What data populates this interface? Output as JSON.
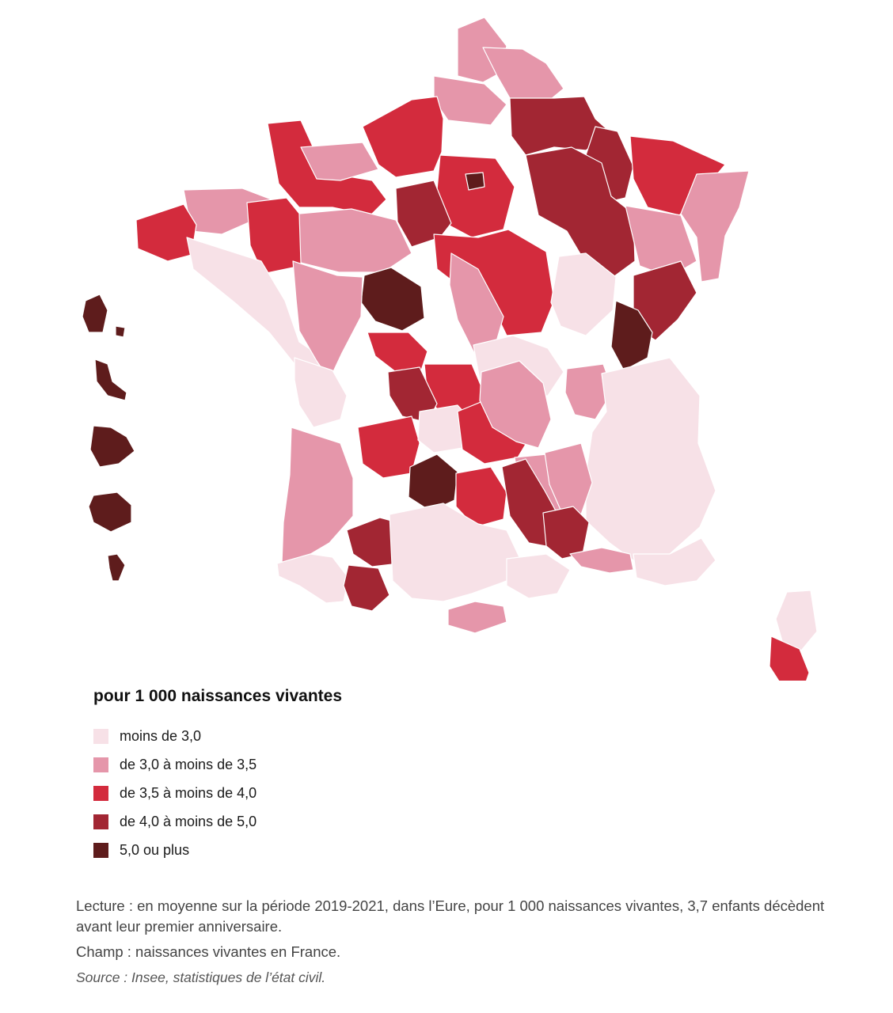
{
  "legend": {
    "title": "pour 1 000 naissances vivantes",
    "classes": [
      {
        "label": "moins de 3,0",
        "color": "#f7e1e7"
      },
      {
        "label": "de 3,0 à moins de 3,5",
        "color": "#e596aa"
      },
      {
        "label": "de 3,5 à moins de 4,0",
        "color": "#d32b3d"
      },
      {
        "label": "de 4,0 à moins de 5,0",
        "color": "#a22633"
      },
      {
        "label": "5,0 ou plus",
        "color": "#5e1c1c"
      }
    ]
  },
  "notes": {
    "lecture": "Lecture : en moyenne sur la période 2019-2021, dans l’Eure, pour 1 000 naissances vivantes, 3,7 enfants décèdent avant leur premier anniversaire.",
    "champ": "Champ : naissances vivantes en France.",
    "source": "Source : Insee, statistiques de l’état civil."
  },
  "map": {
    "regions": [
      {
        "name": "nord-pas-de-calais",
        "class": 1
      },
      {
        "name": "somme-oise",
        "class": 1
      },
      {
        "name": "aisne",
        "class": 1
      },
      {
        "name": "ardennes-marne",
        "class": 3
      },
      {
        "name": "meuse",
        "class": 3
      },
      {
        "name": "moselle",
        "class": 2
      },
      {
        "name": "bas-rhin-haut-rhin",
        "class": 1
      },
      {
        "name": "seine-maritime-eure",
        "class": 2
      },
      {
        "name": "ile-de-france",
        "class": 2
      },
      {
        "name": "paris",
        "class": 4
      },
      {
        "name": "calvados-orne",
        "class": 2
      },
      {
        "name": "manche",
        "class": 1
      },
      {
        "name": "bretagne-cotes",
        "class": 1
      },
      {
        "name": "finistere",
        "class": 2
      },
      {
        "name": "ille-et-vilaine",
        "class": 2
      },
      {
        "name": "loire-atlantique-sud",
        "class": 0
      },
      {
        "name": "sarthe-mayenne",
        "class": 1
      },
      {
        "name": "loiret-eure-et-loir",
        "class": 3
      },
      {
        "name": "aube-haute-marne",
        "class": 3
      },
      {
        "name": "vosges",
        "class": 1
      },
      {
        "name": "indre-et-loire",
        "class": 2
      },
      {
        "name": "cher",
        "class": 4
      },
      {
        "name": "nievre-yonne",
        "class": 1
      },
      {
        "name": "cote-dor",
        "class": 1
      },
      {
        "name": "haute-saone",
        "class": 0
      },
      {
        "name": "doubs",
        "class": 3
      },
      {
        "name": "jura",
        "class": 4
      },
      {
        "name": "vendee-charente",
        "class": 0
      },
      {
        "name": "vienne",
        "class": 2
      },
      {
        "name": "allier",
        "class": 2
      },
      {
        "name": "creuse-haute-vienne",
        "class": 3
      },
      {
        "name": "saone-et-loire",
        "class": 0
      },
      {
        "name": "ain",
        "class": 1
      },
      {
        "name": "savoie-alpes",
        "class": 0
      },
      {
        "name": "gironde-landes",
        "class": 1
      },
      {
        "name": "dordogne",
        "class": 2
      },
      {
        "name": "correze",
        "class": 0
      },
      {
        "name": "puy-de-dome",
        "class": 2
      },
      {
        "name": "loire-rhone",
        "class": 1
      },
      {
        "name": "cantal-lot",
        "class": 4
      },
      {
        "name": "haute-loire",
        "class": 2
      },
      {
        "name": "ardeche",
        "class": 1
      },
      {
        "name": "lozere-gard",
        "class": 3
      },
      {
        "name": "drome",
        "class": 1
      },
      {
        "name": "pyrenees-atlantiques",
        "class": 0
      },
      {
        "name": "gers-tarn",
        "class": 3
      },
      {
        "name": "hautes-pyrenees",
        "class": 3
      },
      {
        "name": "haute-garonne-aude",
        "class": 0
      },
      {
        "name": "pyrenees-orientales",
        "class": 1
      },
      {
        "name": "herault",
        "class": 0
      },
      {
        "name": "vaucluse",
        "class": 3
      },
      {
        "name": "bouches-du-rhone",
        "class": 1
      },
      {
        "name": "var-alpes-maritimes",
        "class": 0
      },
      {
        "name": "haute-corse",
        "class": 0
      },
      {
        "name": "corse-du-sud",
        "class": 2
      },
      {
        "name": "guadeloupe",
        "class": 4
      },
      {
        "name": "martinique",
        "class": 4
      },
      {
        "name": "guyane",
        "class": 4
      },
      {
        "name": "la-reunion",
        "class": 4
      },
      {
        "name": "mayotte",
        "class": 4
      }
    ]
  }
}
